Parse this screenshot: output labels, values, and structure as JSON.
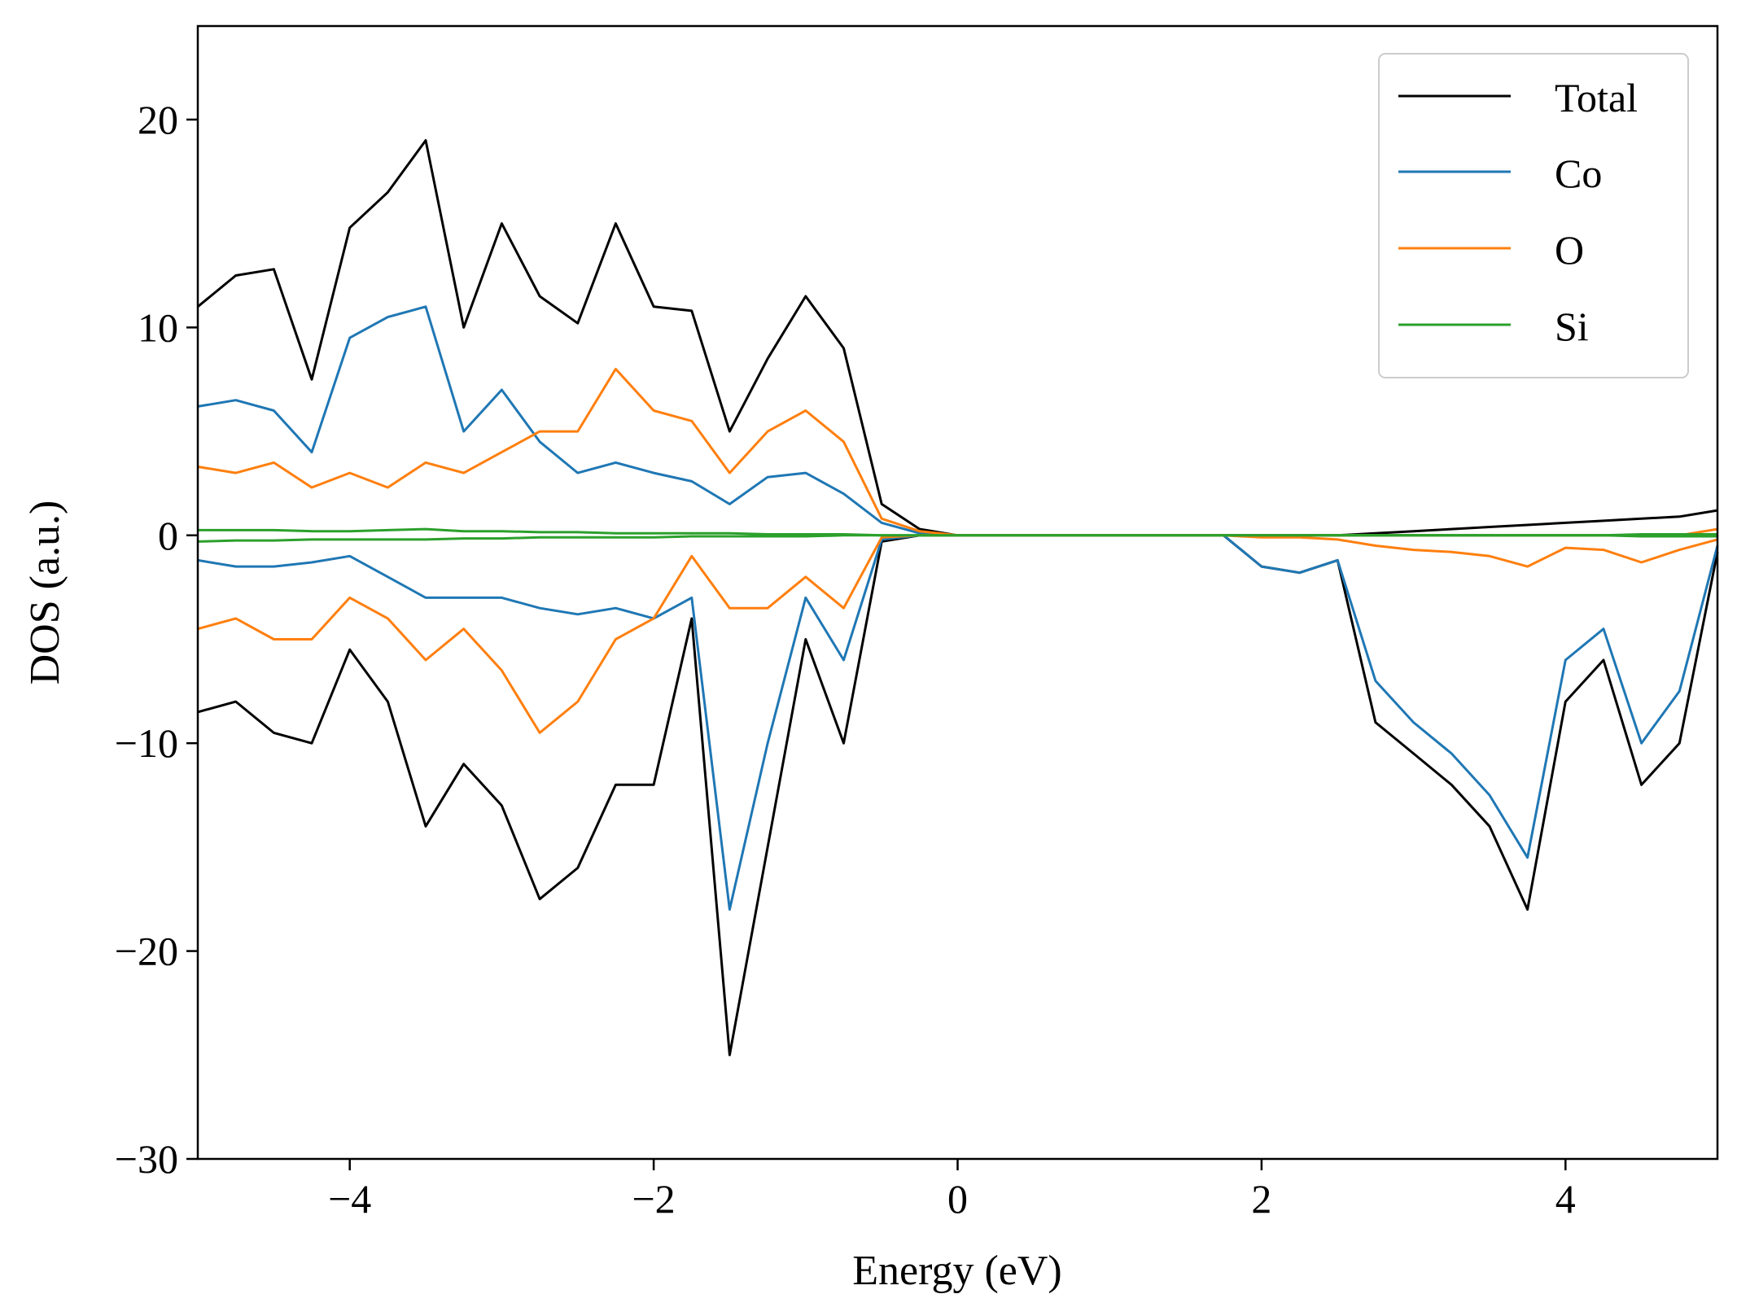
{
  "chart_data": {
    "type": "line",
    "title": "",
    "xlabel": "Energy (eV)",
    "ylabel": "DOS (a.u.)",
    "xlim": [
      -5,
      5
    ],
    "ylim": [
      -30,
      24.5
    ],
    "xticks": [
      -4,
      -2,
      0,
      2,
      4
    ],
    "yticks": [
      -30,
      -20,
      -10,
      0,
      10,
      20
    ],
    "xtick_labels": [
      "−4",
      "−2",
      "0",
      "2",
      "4"
    ],
    "ytick_labels": [
      "−30",
      "−20",
      "−10",
      "0",
      "10",
      "20"
    ],
    "grid": false,
    "legend": {
      "position": "top-right"
    },
    "x": [
      -5.0,
      -4.75,
      -4.5,
      -4.25,
      -4.0,
      -3.75,
      -3.5,
      -3.25,
      -3.0,
      -2.75,
      -2.5,
      -2.25,
      -2.0,
      -1.75,
      -1.5,
      -1.25,
      -1.0,
      -0.75,
      -0.5,
      -0.25,
      0.0,
      0.25,
      0.5,
      0.75,
      1.0,
      1.25,
      1.5,
      1.75,
      2.0,
      2.25,
      2.5,
      2.75,
      3.0,
      3.25,
      3.5,
      3.75,
      4.0,
      4.25,
      4.5,
      4.75,
      5.0
    ],
    "series": [
      {
        "name": "Total",
        "color": "#000000",
        "spin_up": [
          11.0,
          12.5,
          12.8,
          7.5,
          14.8,
          16.5,
          19.0,
          10.0,
          15.0,
          11.5,
          10.2,
          15.0,
          11.0,
          10.8,
          5.0,
          8.5,
          11.5,
          9.0,
          1.5,
          0.3,
          0,
          0,
          0,
          0,
          0,
          0,
          0,
          0,
          0,
          0,
          0,
          0.1,
          0.2,
          0.3,
          0.4,
          0.5,
          0.6,
          0.7,
          0.8,
          0.9,
          1.2
        ],
        "spin_down": [
          -8.5,
          -8.0,
          -9.5,
          -10.0,
          -5.5,
          -8.0,
          -14.0,
          -11.0,
          -13.0,
          -17.5,
          -16.0,
          -12.0,
          -12.0,
          -4.0,
          -25.0,
          -15.0,
          -5.0,
          -10.0,
          -0.3,
          0,
          0,
          0,
          0,
          0,
          0,
          0,
          0,
          0,
          -1.5,
          -1.8,
          -1.2,
          -9.0,
          -10.5,
          -12.0,
          -14.0,
          -18.0,
          -8.0,
          -6.0,
          -12.0,
          -10.0,
          -0.8
        ]
      },
      {
        "name": "Co",
        "color": "#1f77b4",
        "spin_up": [
          6.2,
          6.5,
          6.0,
          4.0,
          9.5,
          10.5,
          11.0,
          5.0,
          7.0,
          4.5,
          3.0,
          3.5,
          3.0,
          2.6,
          1.5,
          2.8,
          3.0,
          2.0,
          0.6,
          0.1,
          0,
          0,
          0,
          0,
          0,
          0,
          0,
          0,
          0,
          0,
          0,
          0,
          0,
          0,
          0,
          0,
          0,
          0,
          0,
          0,
          0
        ],
        "spin_down": [
          -1.2,
          -1.5,
          -1.5,
          -1.3,
          -1.0,
          -2.0,
          -3.0,
          -3.0,
          -3.0,
          -3.5,
          -3.8,
          -3.5,
          -4.0,
          -3.0,
          -18.0,
          -10.0,
          -3.0,
          -6.0,
          -0.2,
          0,
          0,
          0,
          0,
          0,
          0,
          0,
          0,
          0,
          -1.5,
          -1.8,
          -1.2,
          -7.0,
          -9.0,
          -10.5,
          -12.5,
          -15.5,
          -6.0,
          -4.5,
          -10.0,
          -7.5,
          -0.5
        ]
      },
      {
        "name": "O",
        "color": "#ff7f0e",
        "spin_up": [
          3.3,
          3.0,
          3.5,
          2.3,
          3.0,
          2.3,
          3.5,
          3.0,
          4.0,
          5.0,
          5.0,
          8.0,
          6.0,
          5.5,
          3.0,
          5.0,
          6.0,
          4.5,
          0.8,
          0.2,
          0,
          0,
          0,
          0,
          0,
          0,
          0,
          0,
          0,
          0,
          0,
          0,
          0,
          0,
          0,
          0,
          0,
          0,
          0,
          0,
          0.3
        ],
        "spin_down": [
          -4.5,
          -4.0,
          -5.0,
          -5.0,
          -3.0,
          -4.0,
          -6.0,
          -4.5,
          -6.5,
          -9.5,
          -8.0,
          -5.0,
          -4.0,
          -1.0,
          -3.5,
          -3.5,
          -2.0,
          -3.5,
          -0.1,
          0,
          0,
          0,
          0,
          0,
          0,
          0,
          0,
          0,
          -0.1,
          -0.1,
          -0.2,
          -0.5,
          -0.7,
          -0.8,
          -1.0,
          -1.5,
          -0.6,
          -0.7,
          -1.3,
          -0.7,
          -0.2
        ]
      },
      {
        "name": "Si",
        "color": "#2ca02c",
        "spin_up": [
          0.25,
          0.25,
          0.25,
          0.2,
          0.2,
          0.25,
          0.3,
          0.2,
          0.2,
          0.15,
          0.15,
          0.1,
          0.1,
          0.1,
          0.1,
          0.05,
          0.05,
          0.05,
          0,
          0,
          0,
          0,
          0,
          0,
          0,
          0,
          0,
          0,
          0,
          0,
          0,
          0,
          0,
          0,
          0,
          0,
          0,
          0,
          0.05,
          0.05,
          0.05
        ],
        "spin_down": [
          -0.3,
          -0.25,
          -0.25,
          -0.2,
          -0.2,
          -0.2,
          -0.2,
          -0.15,
          -0.15,
          -0.1,
          -0.1,
          -0.1,
          -0.1,
          -0.05,
          -0.05,
          -0.05,
          -0.05,
          0,
          0,
          0,
          0,
          0,
          0,
          0,
          0,
          0,
          0,
          0,
          0,
          0,
          0,
          0,
          0,
          0,
          0,
          0,
          0,
          0,
          -0.05,
          -0.05,
          -0.05
        ]
      }
    ]
  }
}
